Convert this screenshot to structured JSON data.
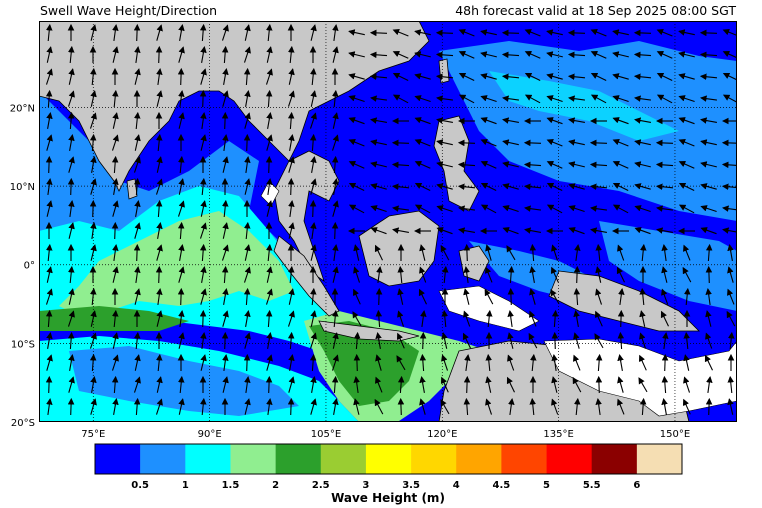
{
  "title_left": "Swell Wave Height/Direction",
  "title_right": "48h forecast valid at 18 Sep 2025 08:00 SGT",
  "map": {
    "lon_range": [
      68,
      158
    ],
    "lat_range": [
      -20,
      31
    ],
    "lon_ticks": [
      {
        "value": 75,
        "label": "75°E"
      },
      {
        "value": 90,
        "label": "90°E"
      },
      {
        "value": 105,
        "label": "105°E"
      },
      {
        "value": 120,
        "label": "120°E"
      },
      {
        "value": 135,
        "label": "135°E"
      },
      {
        "value": 150,
        "label": "150°E"
      }
    ],
    "lat_ticks": [
      {
        "value": 20,
        "label": "20°N"
      },
      {
        "value": 10,
        "label": "10°N"
      },
      {
        "value": 0,
        "label": "0°"
      },
      {
        "value": -10,
        "label": "10°S"
      },
      {
        "value": -20,
        "label": "20°S"
      }
    ],
    "land_color": "#c8c8c8",
    "gridlines": "dotted"
  },
  "colorbar": {
    "label": "Wave Height (m)",
    "colors": [
      "#0000ff",
      "#1e90ff",
      "#00ffff",
      "#90ee90",
      "#2ca02c",
      "#9acd32",
      "#ffff00",
      "#ffd700",
      "#ffa500",
      "#ff4500",
      "#ff0000",
      "#8b0000",
      "#f5deb3"
    ],
    "tick_labels": [
      "0.5",
      "1",
      "1.5",
      "2",
      "2.5",
      "3",
      "3.5",
      "4",
      "4.5",
      "5",
      "5.5",
      "6"
    ]
  }
}
